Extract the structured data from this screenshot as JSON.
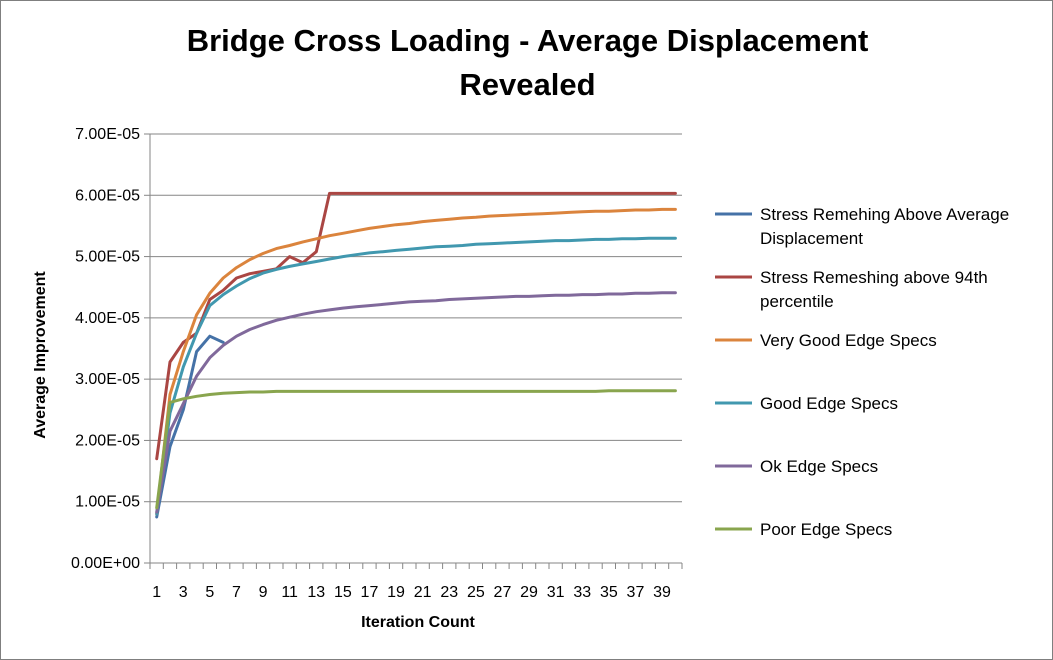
{
  "chart_data": {
    "type": "line",
    "title_line1": "Bridge Cross Loading - Average Displacement",
    "title_line2": "Revealed",
    "xlabel": "Iteration Count",
    "ylabel": "Average Improvement",
    "ylim": [
      0,
      7e-05
    ],
    "y_ticks": [
      "0.00E+00",
      "1.00E-05",
      "2.00E-05",
      "3.00E-05",
      "4.00E-05",
      "5.00E-05",
      "6.00E-05",
      "7.00E-05"
    ],
    "x_ticks": [
      "1",
      "3",
      "5",
      "7",
      "9",
      "11",
      "13",
      "15",
      "17",
      "19",
      "21",
      "23",
      "25",
      "27",
      "29",
      "31",
      "33",
      "35",
      "37",
      "39"
    ],
    "x": [
      1,
      2,
      3,
      4,
      5,
      6,
      7,
      8,
      9,
      10,
      11,
      12,
      13,
      14,
      15,
      16,
      17,
      18,
      19,
      20,
      21,
      22,
      23,
      24,
      25,
      26,
      27,
      28,
      29,
      30,
      31,
      32,
      33,
      34,
      35,
      36,
      37,
      38,
      39,
      40
    ],
    "legend_position": "right",
    "grid": "horizontal",
    "series": [
      {
        "name": "Stress Remehing Above Average Displacement",
        "color": "#4572a7",
        "values": [
          7.5e-06,
          1.9e-05,
          2.5e-05,
          3.45e-05,
          3.7e-05,
          3.6e-05,
          null,
          null,
          null,
          null,
          null,
          null,
          null,
          null,
          null,
          null,
          null,
          null,
          null,
          null,
          null,
          null,
          null,
          null,
          null,
          null,
          null,
          null,
          null,
          null,
          null,
          null,
          null,
          null,
          null,
          null,
          null,
          null,
          null,
          null
        ]
      },
      {
        "name": "Stress Remeshing above 94th percentile",
        "color": "#aa4643",
        "values": [
          1.7e-05,
          3.28e-05,
          3.6e-05,
          3.75e-05,
          4.3e-05,
          4.45e-05,
          4.65e-05,
          4.72e-05,
          4.76e-05,
          4.8e-05,
          5e-05,
          4.9e-05,
          5.08e-05,
          6.03e-05,
          6.03e-05,
          6.03e-05,
          6.03e-05,
          6.03e-05,
          6.03e-05,
          6.03e-05,
          6.03e-05,
          6.03e-05,
          6.03e-05,
          6.03e-05,
          6.03e-05,
          6.03e-05,
          6.03e-05,
          6.03e-05,
          6.03e-05,
          6.03e-05,
          6.03e-05,
          6.03e-05,
          6.03e-05,
          6.03e-05,
          6.03e-05,
          6.03e-05,
          6.03e-05,
          6.03e-05,
          6.03e-05,
          6.03e-05
        ]
      },
      {
        "name": "Very Good Edge Specs",
        "color": "#db843d",
        "values": [
          8e-06,
          2.75e-05,
          3.45e-05,
          4.05e-05,
          4.4e-05,
          4.65e-05,
          4.82e-05,
          4.95e-05,
          5.05e-05,
          5.13e-05,
          5.18e-05,
          5.24e-05,
          5.29e-05,
          5.34e-05,
          5.38e-05,
          5.42e-05,
          5.46e-05,
          5.49e-05,
          5.52e-05,
          5.54e-05,
          5.57e-05,
          5.59e-05,
          5.61e-05,
          5.63e-05,
          5.64e-05,
          5.66e-05,
          5.67e-05,
          5.68e-05,
          5.69e-05,
          5.7e-05,
          5.71e-05,
          5.72e-05,
          5.73e-05,
          5.74e-05,
          5.74e-05,
          5.75e-05,
          5.76e-05,
          5.76e-05,
          5.77e-05,
          5.77e-05
        ]
      },
      {
        "name": "Good Edge Specs",
        "color": "#4198af",
        "values": [
          8e-06,
          2.45e-05,
          3.2e-05,
          3.75e-05,
          4.2e-05,
          4.38e-05,
          4.52e-05,
          4.64e-05,
          4.73e-05,
          4.79e-05,
          4.84e-05,
          4.88e-05,
          4.92e-05,
          4.96e-05,
          5e-05,
          5.03e-05,
          5.06e-05,
          5.08e-05,
          5.1e-05,
          5.12e-05,
          5.14e-05,
          5.16e-05,
          5.17e-05,
          5.18e-05,
          5.2e-05,
          5.21e-05,
          5.22e-05,
          5.23e-05,
          5.24e-05,
          5.25e-05,
          5.26e-05,
          5.26e-05,
          5.27e-05,
          5.28e-05,
          5.28e-05,
          5.29e-05,
          5.29e-05,
          5.3e-05,
          5.3e-05,
          5.3e-05
        ]
      },
      {
        "name": "Ok Edge Specs",
        "color": "#80699b",
        "values": [
          8.3e-06,
          2.15e-05,
          2.6e-05,
          3.05e-05,
          3.35e-05,
          3.55e-05,
          3.7e-05,
          3.81e-05,
          3.89e-05,
          3.96e-05,
          4.01e-05,
          4.06e-05,
          4.1e-05,
          4.13e-05,
          4.16e-05,
          4.18e-05,
          4.2e-05,
          4.22e-05,
          4.24e-05,
          4.26e-05,
          4.27e-05,
          4.28e-05,
          4.3e-05,
          4.31e-05,
          4.32e-05,
          4.33e-05,
          4.34e-05,
          4.35e-05,
          4.35e-05,
          4.36e-05,
          4.37e-05,
          4.37e-05,
          4.38e-05,
          4.38e-05,
          4.39e-05,
          4.39e-05,
          4.4e-05,
          4.4e-05,
          4.41e-05,
          4.41e-05
        ]
      },
      {
        "name": "Poor Edge Specs",
        "color": "#89a54e",
        "values": [
          9e-06,
          2.62e-05,
          2.68e-05,
          2.72e-05,
          2.75e-05,
          2.77e-05,
          2.78e-05,
          2.79e-05,
          2.79e-05,
          2.8e-05,
          2.8e-05,
          2.8e-05,
          2.8e-05,
          2.8e-05,
          2.8e-05,
          2.8e-05,
          2.8e-05,
          2.8e-05,
          2.8e-05,
          2.8e-05,
          2.8e-05,
          2.8e-05,
          2.8e-05,
          2.8e-05,
          2.8e-05,
          2.8e-05,
          2.8e-05,
          2.8e-05,
          2.8e-05,
          2.8e-05,
          2.8e-05,
          2.8e-05,
          2.8e-05,
          2.8e-05,
          2.81e-05,
          2.81e-05,
          2.81e-05,
          2.81e-05,
          2.81e-05,
          2.81e-05
        ]
      }
    ]
  }
}
